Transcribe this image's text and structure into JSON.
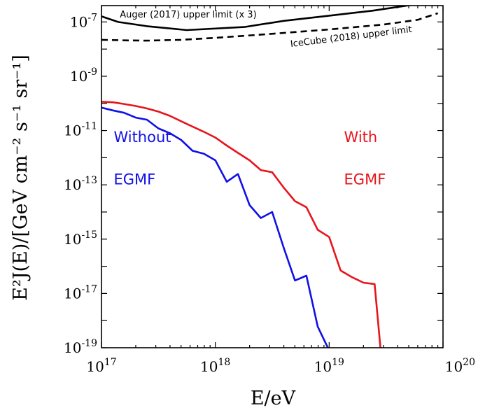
{
  "chart_data": {
    "type": "line",
    "title": "",
    "xlabel": "E/eV",
    "ylabel": "E²J(E)/[GeV cm⁻² s⁻¹ sr⁻¹]",
    "xscale": "log",
    "yscale": "log",
    "xlim": [
      1e+17,
      1e+20
    ],
    "ylim": [
      1e-19,
      4e-07
    ],
    "grid": false,
    "x_ticks": [
      "10^17",
      "10^18",
      "10^19",
      "10^20"
    ],
    "y_ticks": [
      "10^-19",
      "10^-17",
      "10^-15",
      "10^-13",
      "10^-11",
      "10^-9",
      "10^-7"
    ],
    "series": [
      {
        "name": "Auger (2017) upper limit (x 3)",
        "color": "#000000",
        "style": "solid",
        "x": [
          1e+17,
          1.4e+17,
          2.5e+17,
          5.6e+17,
          1.8e+18,
          4e+18,
          1e+19,
          2.4e+19,
          5e+19,
          7e+19
        ],
        "y": [
          1.6e-07,
          1e-07,
          7e-08,
          5e-08,
          6.5e-08,
          1.1e-07,
          1.7e-07,
          2.6e-07,
          4.1e-07,
          4.6e-07
        ]
      },
      {
        "name": "IceCube (2018) upper limit",
        "color": "#000000",
        "style": "dashed",
        "x": [
          1e+17,
          1.6e+17,
          2.5e+17,
          5e+17,
          1e+18,
          3e+18,
          1e+19,
          3e+19,
          6e+19,
          9e+19
        ],
        "y": [
          2.2e-08,
          2.1e-08,
          2.05e-08,
          2.2e-08,
          2.6e-08,
          3.6e-08,
          5.3e-08,
          8e-08,
          1.2e-07,
          2.1e-07
        ]
      },
      {
        "name": "With EGMF",
        "color": "#e8141c",
        "style": "solid",
        "x": [
          1e+17,
          1.26e+17,
          1.58e+17,
          2e+17,
          2.51e+17,
          3.16e+17,
          3.98e+17,
          5.01e+17,
          6.31e+17,
          7.94e+17,
          1e+18,
          1.26e+18,
          1.58e+18,
          2e+18,
          2.51e+18,
          3.16e+18,
          3.98e+18,
          5.01e+18,
          6.31e+18,
          7.94e+18,
          1e+19,
          1.26e+19,
          1.58e+19,
          2e+19,
          2.51e+19,
          2.82e+19,
          3.16e+19,
          3.55e+19
        ],
        "y": [
          1.15e-10,
          1.1e-10,
          9.5e-11,
          8e-11,
          6.5e-11,
          5e-11,
          3.5e-11,
          2.2e-11,
          1.4e-11,
          9e-12,
          5.5e-12,
          2.8e-12,
          1.5e-12,
          8e-13,
          3.5e-13,
          2.9e-13,
          8e-14,
          2.5e-14,
          1.5e-14,
          2.2e-15,
          1.2e-15,
          7e-17,
          4e-17,
          2.5e-17,
          2.2e-17,
          1e-19,
          8e-20,
          7e-20
        ]
      },
      {
        "name": "Without EGMF",
        "color": "#1010e8",
        "style": "solid",
        "x": [
          1e+17,
          1.26e+17,
          1.58e+17,
          2e+17,
          2.51e+17,
          3.16e+17,
          3.98e+17,
          5.01e+17,
          6.31e+17,
          7.94e+17,
          1e+18,
          1.26e+18,
          1.58e+18,
          2e+18,
          2.51e+18,
          3.16e+18,
          3.98e+18,
          5.01e+18,
          6.31e+18,
          7.94e+18,
          1e+19,
          1.26e+19
        ],
        "y": [
          7e-11,
          5.5e-11,
          4.5e-11,
          3e-11,
          2.5e-11,
          1.2e-11,
          8e-12,
          4.5e-12,
          1.8e-12,
          1.4e-12,
          8e-13,
          1.3e-13,
          2.5e-13,
          1.8e-14,
          6e-15,
          1e-14,
          5e-16,
          3e-17,
          4.5e-17,
          6e-19,
          8e-20,
          1e-20
        ]
      }
    ],
    "annotations": [
      {
        "text": "Auger (2017) upper limit (x 3)",
        "color": "#000000",
        "size": "sm",
        "x": 1.45e+17,
        "y": 1.45e-07,
        "rotate": 0
      },
      {
        "text": "IceCube (2018) upper limit",
        "color": "#000000",
        "size": "sm",
        "x": 4.6e+18,
        "y": 1.2e-08,
        "rotate": -7
      },
      {
        "text": "Without",
        "color": "#1010e8",
        "size": "lg",
        "x": 1.28e+17,
        "y": 3.8e-12,
        "rotate": 0
      },
      {
        "text": "EGMF",
        "color": "#1010e8",
        "size": "lg",
        "x": 1.28e+17,
        "y": 1.05e-13,
        "rotate": 0
      },
      {
        "text": "With",
        "color": "#e8141c",
        "size": "lg",
        "x": 1.35e+19,
        "y": 3.8e-12,
        "rotate": 0
      },
      {
        "text": "EGMF",
        "color": "#e8141c",
        "size": "lg",
        "x": 1.35e+19,
        "y": 1.05e-13,
        "rotate": 0
      }
    ]
  }
}
